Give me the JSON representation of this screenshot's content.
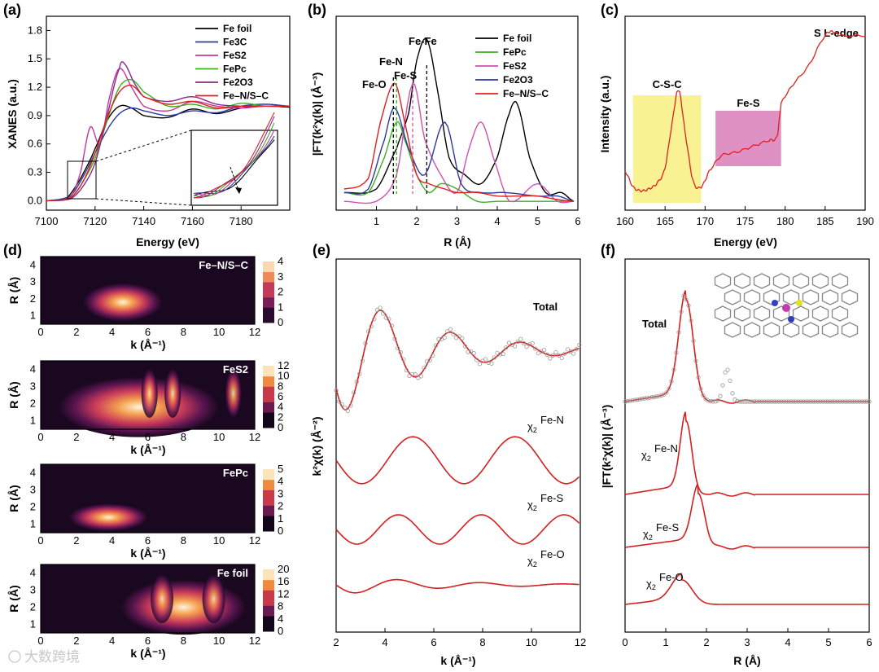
{
  "chart_data": [
    {
      "id": "a",
      "panel_label": "(a)",
      "type": "line",
      "xlabel": "Energy (eV)",
      "ylabel": "XANES (a.u.)",
      "xlim": [
        7100,
        7200
      ],
      "ylim": [
        -0.1,
        1.95
      ],
      "xticks": [
        "7100",
        "7120",
        "7140",
        "7160",
        "7180"
      ],
      "yticks": [
        "0.0",
        "0.3",
        "0.6",
        "0.9",
        "1.2",
        "1.5",
        "1.8"
      ],
      "series": [
        {
          "name": "Fe foil",
          "color": "#000000",
          "x": [
            7100,
            7108,
            7112,
            7116,
            7120,
            7125,
            7130,
            7135,
            7140,
            7150,
            7160,
            7170,
            7180,
            7190,
            7200
          ],
          "y": [
            0,
            0.02,
            0.15,
            0.33,
            0.55,
            0.85,
            1.0,
            0.98,
            0.9,
            0.88,
            0.97,
            0.92,
            0.98,
            1.0,
            0.99
          ]
        },
        {
          "name": "Fe3C",
          "color": "#2b3a9c",
          "x": [
            7100,
            7110,
            7115,
            7120,
            7125,
            7130,
            7135,
            7140,
            7150,
            7160,
            7170,
            7180,
            7190,
            7200
          ],
          "y": [
            0,
            0.05,
            0.25,
            0.5,
            0.75,
            0.92,
            0.98,
            0.95,
            0.9,
            0.95,
            0.93,
            1.0,
            1.02,
            1.0
          ]
        },
        {
          "name": "FeS2",
          "color": "#c0389c",
          "x": [
            7100,
            7110,
            7114,
            7118,
            7122,
            7126,
            7130,
            7135,
            7140,
            7150,
            7160,
            7170,
            7180,
            7190,
            7200
          ],
          "y": [
            0,
            0.04,
            0.3,
            0.78,
            0.6,
            1.1,
            1.4,
            1.2,
            1.0,
            0.95,
            1.05,
            1.0,
            0.98,
            1.0,
            1.0
          ]
        },
        {
          "name": "FePc",
          "color": "#3bb020",
          "x": [
            7100,
            7110,
            7115,
            7120,
            7125,
            7130,
            7135,
            7140,
            7150,
            7160,
            7170,
            7180,
            7190,
            7200
          ],
          "y": [
            0,
            0.03,
            0.2,
            0.45,
            0.85,
            1.2,
            1.28,
            1.15,
            1.0,
            1.02,
            0.97,
            1.03,
            1.0,
            1.0
          ]
        },
        {
          "name": "Fe2O3",
          "color": "#8a2a8a",
          "x": [
            7100,
            7110,
            7115,
            7120,
            7125,
            7130,
            7132,
            7136,
            7140,
            7150,
            7160,
            7170,
            7180,
            7190,
            7200
          ],
          "y": [
            0,
            0.02,
            0.15,
            0.4,
            0.9,
            1.4,
            1.45,
            1.25,
            1.1,
            1.05,
            1.1,
            1.02,
            1.0,
            1.0,
            1.0
          ]
        },
        {
          "name": "Fe–N/S–C",
          "color": "#e02020",
          "x": [
            7100,
            7110,
            7115,
            7120,
            7125,
            7130,
            7135,
            7140,
            7150,
            7160,
            7170,
            7180,
            7190,
            7200
          ],
          "y": [
            0,
            0.03,
            0.2,
            0.5,
            0.88,
            1.15,
            1.22,
            1.1,
            1.02,
            1.05,
            0.98,
            1.0,
            1.0,
            1.0
          ]
        }
      ]
    },
    {
      "id": "b",
      "panel_label": "(b)",
      "type": "line",
      "xlabel": "R (Å)",
      "ylabel": "|FT(k²χ(k)| (Å⁻³)",
      "xlim": [
        0,
        6
      ],
      "ylim": [
        0,
        1.1
      ],
      "xticks": [
        "1",
        "2",
        "3",
        "4",
        "5",
        "6"
      ],
      "annotations": [
        "Fe-O",
        "Fe-N",
        "Fe-S",
        "Fe-Fe"
      ],
      "series": [
        {
          "name": "Fe foil",
          "color": "#000000",
          "x": [
            0.2,
            1.0,
            1.5,
            1.8,
            2.0,
            2.25,
            2.5,
            2.8,
            3.2,
            3.6,
            4.0,
            4.3,
            4.5,
            4.8,
            5.2,
            5.6,
            5.9
          ],
          "y": [
            0.1,
            0.12,
            0.35,
            0.55,
            0.85,
            0.97,
            0.7,
            0.3,
            0.2,
            0.15,
            0.3,
            0.55,
            0.6,
            0.3,
            0.1,
            0.1,
            0.05
          ]
        },
        {
          "name": "FePc",
          "color": "#3bb020",
          "x": [
            0.2,
            0.8,
            1.2,
            1.5,
            1.7,
            2.0,
            2.3,
            2.6,
            3.0,
            3.5,
            4.0,
            4.5,
            5.0,
            5.5,
            5.9
          ],
          "y": [
            0.1,
            0.1,
            0.3,
            0.5,
            0.4,
            0.2,
            0.1,
            0.15,
            0.12,
            0.05,
            0.05,
            0.05,
            0.05,
            0.05,
            0.05
          ]
        },
        {
          "name": "FeS2",
          "color": "#d050b0",
          "x": [
            0.2,
            1.0,
            1.5,
            1.9,
            2.2,
            2.6,
            3.0,
            3.3,
            3.6,
            3.9,
            4.3,
            5.0,
            5.5,
            5.9
          ],
          "y": [
            0.05,
            0.05,
            0.2,
            0.72,
            0.4,
            0.2,
            0.1,
            0.35,
            0.5,
            0.3,
            0.05,
            0.15,
            0.05,
            0.05
          ]
        },
        {
          "name": "Fe2O3",
          "color": "#2b3a9c",
          "x": [
            0.2,
            0.8,
            1.2,
            1.45,
            1.8,
            2.2,
            2.7,
            3.1,
            3.6,
            4.2,
            5.0,
            5.5,
            5.9
          ],
          "y": [
            0.1,
            0.12,
            0.4,
            0.58,
            0.35,
            0.2,
            0.5,
            0.15,
            0.1,
            0.1,
            0.08,
            0.08,
            0.05
          ]
        },
        {
          "name": "Fe–N/S–C",
          "color": "#e02020",
          "x": [
            0.2,
            0.8,
            1.1,
            1.45,
            1.7,
            2.0,
            2.3,
            2.7,
            3.0,
            3.5,
            4.0,
            4.5,
            5.0,
            5.5,
            5.9
          ],
          "y": [
            0.12,
            0.18,
            0.5,
            0.72,
            0.5,
            0.2,
            0.15,
            0.12,
            0.1,
            0.1,
            0.08,
            0.08,
            0.08,
            0.06,
            0.05
          ]
        }
      ]
    },
    {
      "id": "c",
      "panel_label": "(c)",
      "type": "line",
      "title": "S L-edge",
      "xlabel": "Energy (eV)",
      "ylabel": "Intensity (a.u.)",
      "xlim": [
        160,
        190
      ],
      "ylim": [
        0,
        1.0
      ],
      "xticks": [
        "160",
        "165",
        "170",
        "175",
        "180",
        "185",
        "190"
      ],
      "regions": [
        {
          "label": "C-S-C",
          "x": [
            161,
            169.5
          ],
          "color": "#f6ee6e"
        },
        {
          "label": "Fe-S",
          "x": [
            171.3,
            179.5
          ],
          "color": "#d46cb0"
        }
      ],
      "series": [
        {
          "name": "",
          "color": "#e02020",
          "x": [
            160,
            161,
            162,
            163,
            164,
            165,
            166,
            166.7,
            167.5,
            168.5,
            169.5,
            170.5,
            172,
            174,
            176,
            178,
            179,
            179.5,
            181,
            183,
            185,
            186,
            187,
            190
          ],
          "y": [
            0.2,
            0.12,
            0.1,
            0.11,
            0.14,
            0.22,
            0.48,
            0.62,
            0.4,
            0.15,
            0.12,
            0.2,
            0.28,
            0.3,
            0.33,
            0.36,
            0.38,
            0.55,
            0.65,
            0.75,
            0.9,
            0.92,
            0.9,
            0.9
          ]
        }
      ]
    },
    {
      "id": "d",
      "panel_label": "(d)",
      "type": "heatmap",
      "xlabel": "k (Å⁻¹)",
      "ylabel": "R (Å)",
      "xticks": [
        "0",
        "2",
        "4",
        "6",
        "8",
        "10",
        "12"
      ],
      "yticks": [
        "1",
        "2",
        "3",
        "4"
      ],
      "maps": [
        {
          "name": "Fe–N/S–C",
          "colorbar": [
            "0",
            "1",
            "2",
            "3",
            "4"
          ]
        },
        {
          "name": "FeS2",
          "colorbar": [
            "0",
            "2",
            "4",
            "6",
            "8",
            "10",
            "12"
          ]
        },
        {
          "name": "FePc",
          "colorbar": [
            "0",
            "1",
            "2",
            "3",
            "4",
            "5"
          ]
        },
        {
          "name": "Fe foil",
          "colorbar": [
            "0",
            "4",
            "8",
            "12",
            "16",
            "20"
          ]
        }
      ]
    },
    {
      "id": "e",
      "panel_label": "(e)",
      "type": "line",
      "xlabel": "k (Å⁻¹)",
      "ylabel": "k²χ(k) (Å⁻²)",
      "xlim": [
        2,
        12
      ],
      "xticks": [
        "2",
        "4",
        "6",
        "8",
        "10",
        "12"
      ],
      "labels": [
        "Total",
        "χ2 Fe-N",
        "χ2 Fe-S",
        "χ2 Fe-O"
      ]
    },
    {
      "id": "f",
      "panel_label": "(f)",
      "type": "line",
      "xlabel": "R (Å)",
      "ylabel": "|FT(k²χ(k)| (Å⁻³)",
      "xlim": [
        0,
        6
      ],
      "xticks": [
        "0",
        "1",
        "2",
        "3",
        "4",
        "5",
        "6"
      ],
      "labels": [
        "Total",
        "χ2 Fe-N",
        "χ2 Fe-S",
        "χ2 Fe-O"
      ]
    }
  ],
  "watermark": "大数跨境"
}
